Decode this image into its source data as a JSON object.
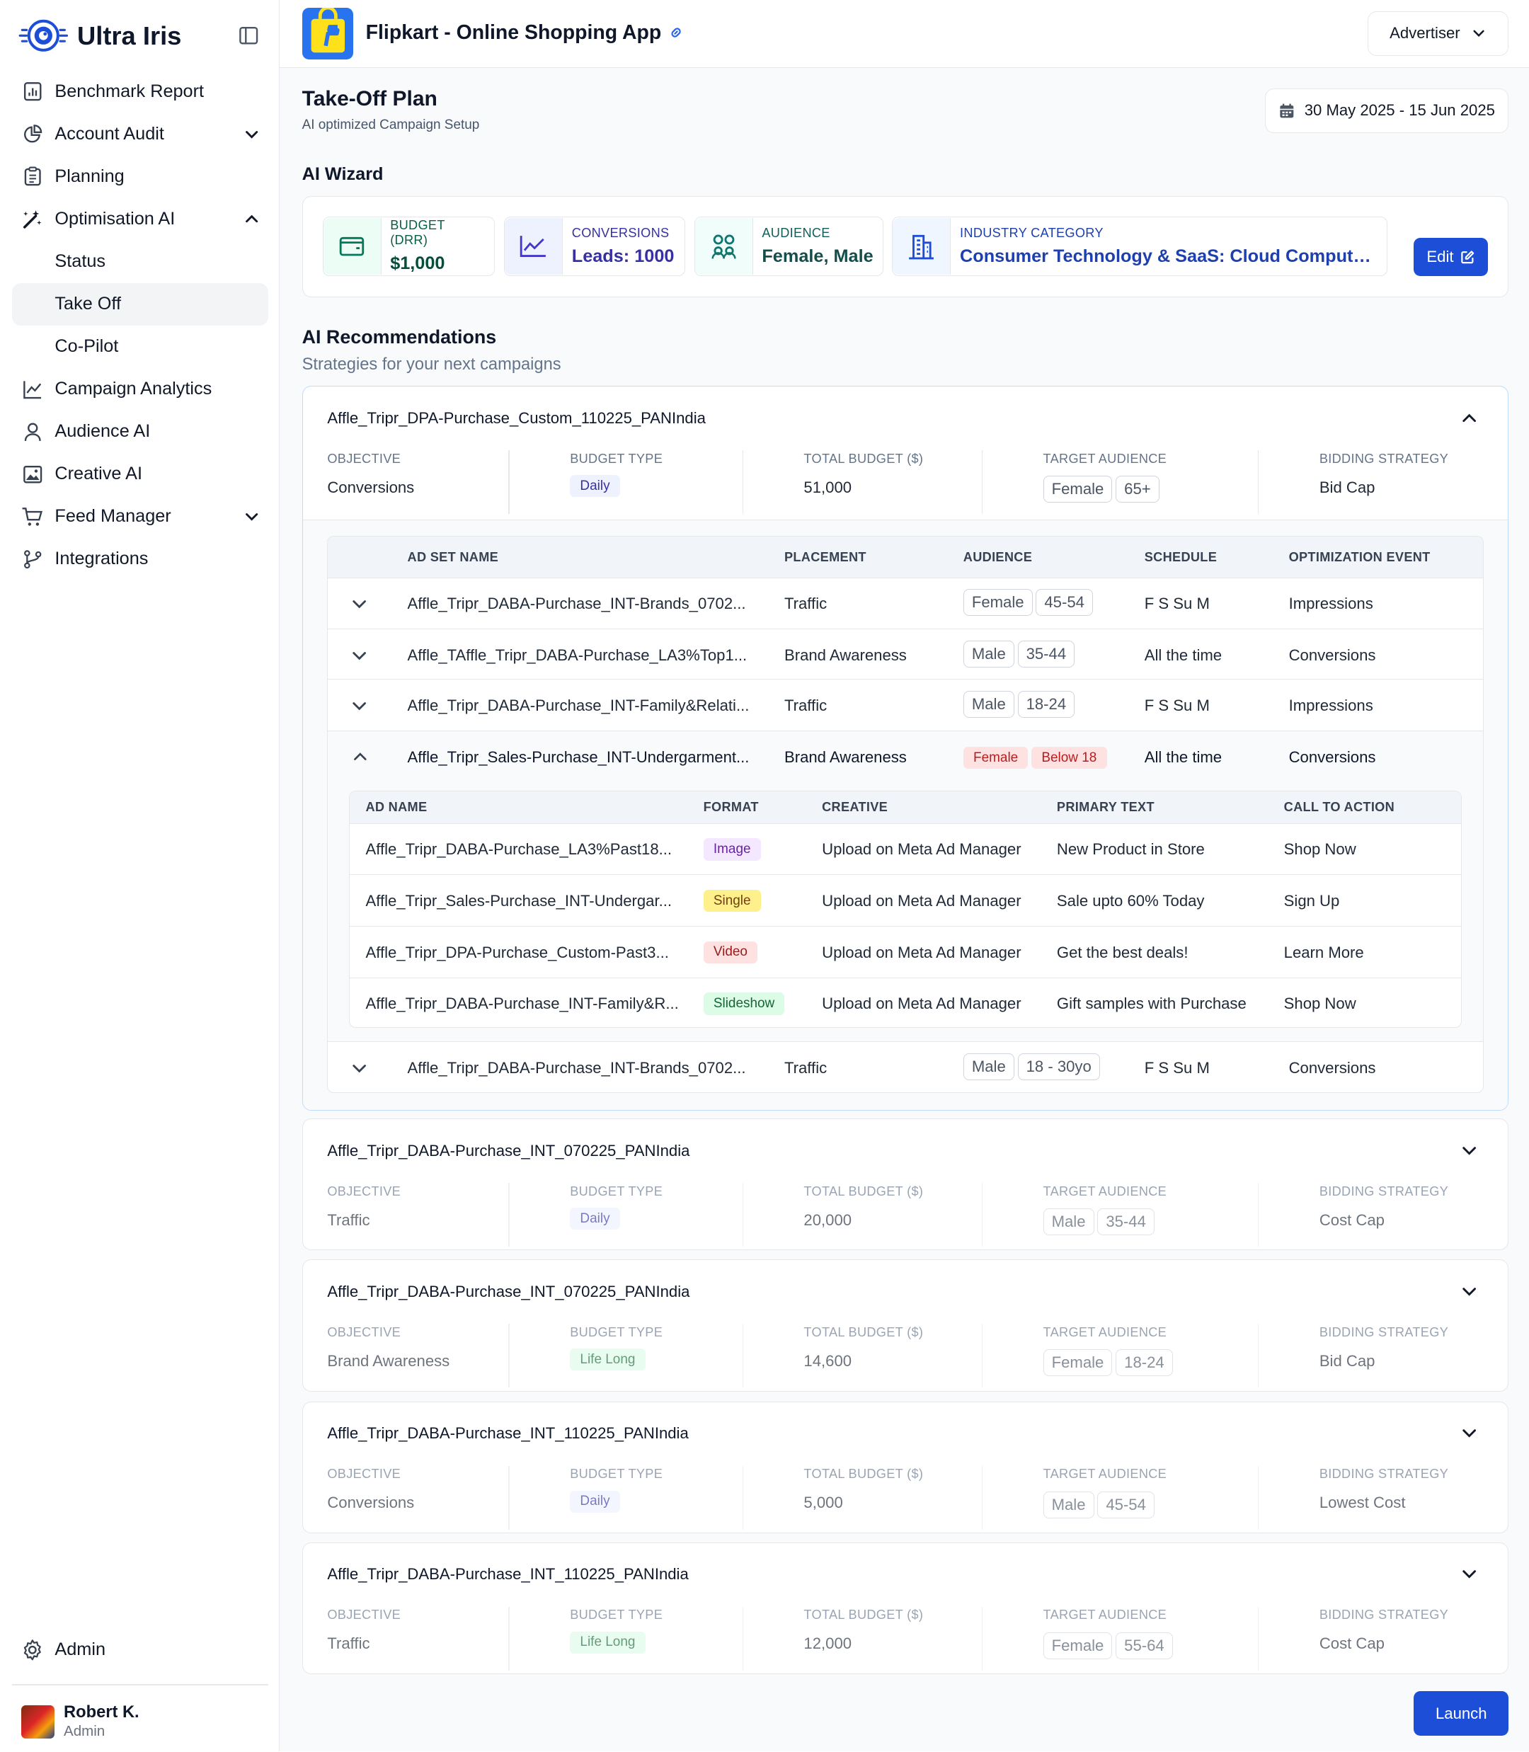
{
  "brand": {
    "name": "Ultra Iris"
  },
  "sidebar": {
    "items": [
      {
        "label": "Benchmark Report",
        "icon": "report-icon"
      },
      {
        "label": "Account Audit",
        "icon": "pie-chart-icon"
      },
      {
        "label": "Planning",
        "icon": "clipboard-icon"
      },
      {
        "label": "Optimisation AI",
        "icon": "magic-wand-icon"
      },
      {
        "label": "Status"
      },
      {
        "label": "Take Off"
      },
      {
        "label": "Co-Pilot"
      },
      {
        "label": "Campaign Analytics",
        "icon": "line-chart-icon"
      },
      {
        "label": "Audience AI",
        "icon": "user-icon"
      },
      {
        "label": "Creative AI",
        "icon": "image-icon"
      },
      {
        "label": "Feed Manager",
        "icon": "cart-icon"
      },
      {
        "label": "Integrations",
        "icon": "git-branch-icon"
      }
    ],
    "admin": "Admin",
    "user": {
      "name": "Robert K.",
      "role": "Admin"
    }
  },
  "header": {
    "app_title": "Flipkart - Online Shopping App",
    "account_type": "Advertiser"
  },
  "page": {
    "title": "Take-Off Plan",
    "subtitle": "AI optimized Campaign Setup",
    "date_range": "30 May 2025 - 15 Jun 2025"
  },
  "wizard": {
    "title": "AI Wizard",
    "budget": {
      "label": "BUDGET (DRR)",
      "value": "$1,000"
    },
    "conversions": {
      "label": "CONVERSIONS",
      "value": "Leads: 1000"
    },
    "audience": {
      "label": "AUDIENCE",
      "value": "Female, Male"
    },
    "industry": {
      "label": "INDUSTRY CATEGORY",
      "value": "Consumer Technology & SaaS: Cloud Computing..."
    },
    "edit_label": "Edit"
  },
  "recommendations": {
    "title": "AI Recommendations",
    "subtitle": "Strategies for your next campaigns",
    "meta_labels": {
      "objective": "OBJECTIVE",
      "budget_type": "BUDGET TYPE",
      "total_budget": "TOTAL BUDGET ($)",
      "target_audience": "TARGET AUDIENCE",
      "bidding": "BIDDING STRATEGY"
    },
    "campaigns": [
      {
        "name": "Affle_Tripr_DPA-Purchase_Custom_110225_PANIndia",
        "objective": "Conversions",
        "budget_type": "Daily",
        "total_budget": "51,000",
        "audience": [
          "Female",
          "65+"
        ],
        "bidding": "Bid Cap"
      },
      {
        "name": "Affle_Tripr_DABA-Purchase_INT_070225_PANIndia",
        "objective": "Traffic",
        "budget_type": "Daily",
        "total_budget": "20,000",
        "audience": [
          "Male",
          "35-44"
        ],
        "bidding": "Cost Cap"
      },
      {
        "name": "Affle_Tripr_DABA-Purchase_INT_070225_PANIndia",
        "objective": "Brand Awareness",
        "budget_type": "Life Long",
        "total_budget": "14,600",
        "audience": [
          "Female",
          "18-24"
        ],
        "bidding": "Bid Cap"
      },
      {
        "name": "Affle_Tripr_DABA-Purchase_INT_110225_PANIndia",
        "objective": "Conversions",
        "budget_type": "Daily",
        "total_budget": "5,000",
        "audience": [
          "Male",
          "45-54"
        ],
        "bidding": "Lowest Cost"
      },
      {
        "name": "Affle_Tripr_DABA-Purchase_INT_110225_PANIndia",
        "objective": "Traffic",
        "budget_type": "Life Long",
        "total_budget": "12,000",
        "audience": [
          "Female",
          "55-64"
        ],
        "bidding": "Cost Cap"
      }
    ],
    "adset_headers": [
      "AD SET NAME",
      "PLACEMENT",
      "AUDIENCE",
      "SCHEDULE",
      "OPTIMIZATION EVENT"
    ],
    "adsets": [
      {
        "name": "Affle_Tripr_DABA-Purchase_INT-Brands_0702...",
        "placement": "Traffic",
        "audience": [
          "Female",
          "45-54"
        ],
        "schedule": "F S Su M",
        "event": "Impressions"
      },
      {
        "name": "Affle_TAffle_Tripr_DABA-Purchase_LA3%Top1...",
        "placement": "Brand Awareness",
        "audience": [
          "Male",
          "35-44"
        ],
        "schedule": "All the time",
        "event": "Conversions"
      },
      {
        "name": "Affle_Tripr_DABA-Purchase_INT-Family&Relati...",
        "placement": "Traffic",
        "audience": [
          "Male",
          "18-24"
        ],
        "schedule": "F S Su M",
        "event": "Impressions"
      },
      {
        "name": "Affle_Tripr_Sales-Purchase_INT-Undergarment...",
        "placement": "Brand Awareness",
        "audience": [
          "Female",
          "Below 18"
        ],
        "schedule": "All the time",
        "event": "Conversions"
      },
      {
        "name": "Affle_Tripr_DABA-Purchase_INT-Brands_0702...",
        "placement": "Traffic",
        "audience": [
          "Male",
          "18 - 30yo"
        ],
        "schedule": "F S Su M",
        "event": "Conversions"
      }
    ],
    "ad_headers": [
      "AD NAME",
      "FORMAT",
      "CREATIVE",
      "PRIMARY TEXT",
      "CALL TO ACTION"
    ],
    "ads": [
      {
        "name": "Affle_Tripr_DABA-Purchase_LA3%Past18...",
        "format": "Image",
        "creative": "Upload on Meta Ad Manager",
        "text": "New Product in Store",
        "cta": "Shop Now"
      },
      {
        "name": "Affle_Tripr_Sales-Purchase_INT-Undergar...",
        "format": "Single",
        "creative": "Upload on Meta Ad Manager",
        "text": "Sale upto 60% Today",
        "cta": "Sign Up"
      },
      {
        "name": "Affle_Tripr_DPA-Purchase_Custom-Past3...",
        "format": "Video",
        "creative": "Upload on Meta Ad Manager",
        "text": "Get the best deals!",
        "cta": "Learn More"
      },
      {
        "name": "Affle_Tripr_DABA-Purchase_INT-Family&R...",
        "format": "Slideshow",
        "creative": "Upload on Meta Ad Manager",
        "text": "Gift samples with Purchase",
        "cta": "Shop Now"
      }
    ],
    "launch_label": "Launch"
  },
  "colors": {
    "accent": "#1d4ed8",
    "budget_tint": "#ecfdf5",
    "conversions_tint": "#eef2ff",
    "audience_tint": "#f0fdfa",
    "industry_tint": "#eff6ff"
  }
}
